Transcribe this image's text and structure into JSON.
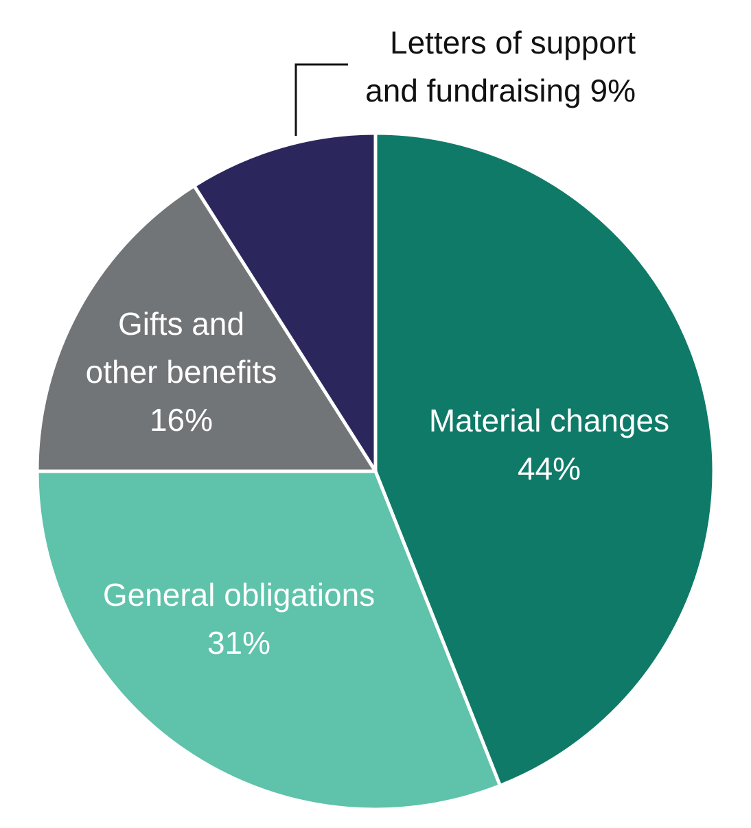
{
  "chart_data": {
    "type": "pie",
    "title": "",
    "start_angle_deg": 0,
    "direction": "clockwise",
    "categories": [
      "Material changes",
      "General obligations",
      "Gifts and other benefits",
      "Letters of support and fundraising"
    ],
    "values": [
      44,
      31,
      16,
      9
    ],
    "unit": "%",
    "colors": [
      "#0f7a68",
      "#5fc2ab",
      "#727578",
      "#2b275d"
    ],
    "legend": "none (inline data labels)"
  },
  "labels": {
    "material": {
      "line1": "Material changes",
      "line2": "44%"
    },
    "general": {
      "line1": "General obligations",
      "line2": "31%"
    },
    "gifts": {
      "line1": "Gifts and",
      "line2": "other benefits",
      "line3": "16%"
    },
    "letters": {
      "line1": "Letters of support",
      "line2": "and fundraising 9%"
    }
  }
}
